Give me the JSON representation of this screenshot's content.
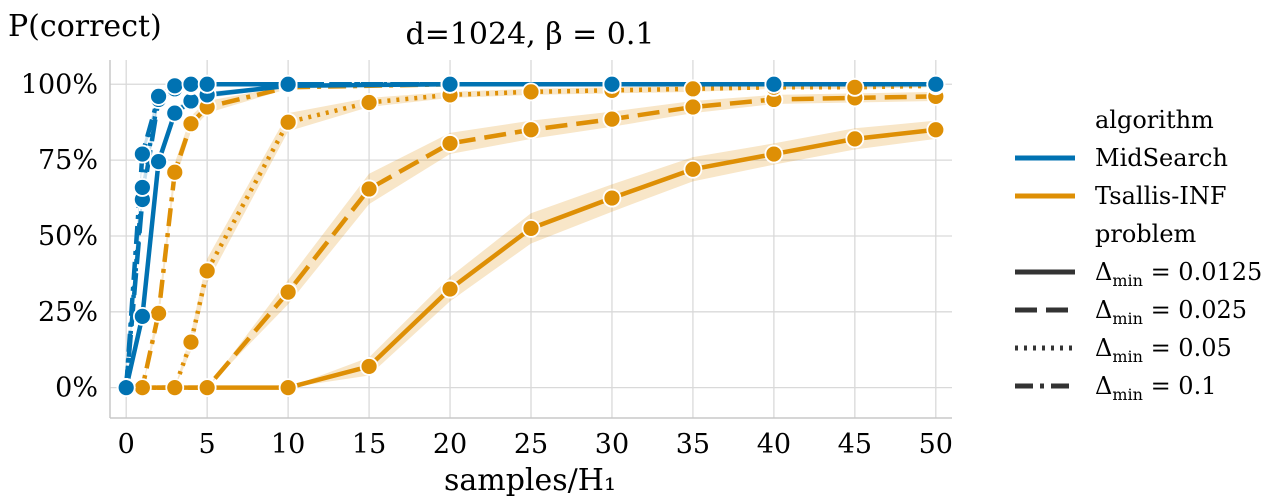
{
  "chart_data": {
    "type": "line",
    "title": "d=1024, β = 0.1",
    "xlabel": "samples/H₁",
    "ylabel": "P(correct)",
    "xlim": [
      -1,
      51
    ],
    "ylim": [
      -10,
      108
    ],
    "xticks": [
      0,
      5,
      10,
      15,
      20,
      25,
      30,
      35,
      40,
      45,
      50
    ],
    "yticks": [
      0,
      25,
      50,
      75,
      100
    ],
    "ytick_labels": [
      "0%",
      "25%",
      "50%",
      "75%",
      "100%"
    ],
    "grid": true,
    "legend": {
      "placement": "right",
      "hue_title": "algorithm",
      "algorithms": [
        {
          "name": "MidSearch",
          "color": "#0072b2"
        },
        {
          "name": "Tsallis-INF",
          "color": "#de8f05"
        }
      ],
      "style_title": "problem",
      "problems": [
        {
          "base": "Δ",
          "sub": "min",
          "rest": " = 0.0125",
          "dash": "solid"
        },
        {
          "base": "Δ",
          "sub": "min",
          "rest": " = 0.025",
          "dash": "dashed"
        },
        {
          "base": "Δ",
          "sub": "min",
          "rest": " = 0.05",
          "dash": "dotted"
        },
        {
          "base": "Δ",
          "sub": "min",
          "rest": " = 0.1",
          "dash": "dashdot"
        }
      ]
    },
    "series": [
      {
        "algorithm": "Tsallis-INF",
        "problem": "Δmin = 0.0125",
        "dash": "solid",
        "x": [
          0,
          10,
          15,
          20,
          25,
          30,
          35,
          40,
          45,
          50
        ],
        "y": [
          0,
          0,
          7,
          32.5,
          52.5,
          62.5,
          72,
          77,
          82,
          85
        ],
        "band": [
          0,
          0,
          3,
          4,
          5,
          4.5,
          4,
          3.5,
          3.5,
          3
        ]
      },
      {
        "algorithm": "Tsallis-INF",
        "problem": "Δmin = 0.025",
        "dash": "dashed",
        "x": [
          0,
          5,
          10,
          15,
          20,
          25,
          30,
          35,
          40,
          45,
          50
        ],
        "y": [
          0,
          0,
          31.5,
          65.5,
          80.5,
          85,
          88.5,
          92.5,
          95,
          95.5,
          96
        ],
        "band": [
          0,
          0,
          4,
          5,
          3.5,
          3,
          2.5,
          2,
          1.5,
          1.5,
          1.5
        ]
      },
      {
        "algorithm": "Tsallis-INF",
        "problem": "Δmin = 0.05",
        "dash": "dotted",
        "x": [
          0,
          3,
          4,
          5,
          10,
          15,
          20,
          25,
          30,
          35,
          40,
          45,
          50
        ],
        "y": [
          0,
          0,
          15,
          38.5,
          87.5,
          94,
          96.5,
          97.5,
          98,
          98.5,
          99,
          99,
          99.5
        ],
        "band": [
          0,
          0,
          3,
          4,
          3,
          1.5,
          1,
          1,
          1,
          1,
          0.5,
          0.5,
          0.5
        ]
      },
      {
        "algorithm": "Tsallis-INF",
        "problem": "Δmin = 0.1",
        "dash": "dashdot",
        "x": [
          0,
          1,
          2,
          3,
          4,
          5,
          10,
          20,
          30,
          40,
          50
        ],
        "y": [
          0,
          0,
          24.5,
          71,
          87,
          92.5,
          99,
          100,
          100,
          100,
          100
        ],
        "band": [
          0,
          0,
          3,
          3,
          2.5,
          2,
          0.5,
          0,
          0,
          0,
          0
        ]
      },
      {
        "algorithm": "MidSearch",
        "problem": "Δmin = 0.0125",
        "dash": "solid",
        "x": [
          0,
          1,
          2,
          3,
          4,
          5,
          10,
          20,
          30,
          40,
          50
        ],
        "y": [
          0,
          23.5,
          74.5,
          90.5,
          94.5,
          96.5,
          99.5,
          100,
          100,
          100,
          100
        ],
        "band": [
          0,
          2,
          2,
          1.5,
          1,
          1,
          0.5,
          0,
          0,
          0,
          0
        ]
      },
      {
        "algorithm": "MidSearch",
        "problem": "Δmin = 0.025",
        "dash": "dashed",
        "x": [
          0,
          1,
          2,
          3,
          4,
          5,
          10,
          20,
          30,
          40,
          50
        ],
        "y": [
          0,
          62,
          95,
          98.5,
          99.5,
          100,
          100,
          100,
          100,
          100,
          100
        ],
        "band": [
          0,
          2,
          1,
          0.5,
          0,
          0,
          0,
          0,
          0,
          0,
          0
        ]
      },
      {
        "algorithm": "MidSearch",
        "problem": "Δmin = 0.05",
        "dash": "dotted",
        "x": [
          0,
          1,
          2,
          3,
          4,
          5,
          10,
          20,
          30,
          40,
          50
        ],
        "y": [
          0,
          66,
          96,
          99.5,
          100,
          100,
          100,
          100,
          100,
          100,
          100
        ],
        "band": [
          0,
          2,
          1,
          0,
          0,
          0,
          0,
          0,
          0,
          0,
          0
        ]
      },
      {
        "algorithm": "MidSearch",
        "problem": "Δmin = 0.1",
        "dash": "dashdot",
        "x": [
          0,
          1,
          2,
          3,
          4,
          5,
          10,
          20,
          30,
          40,
          50
        ],
        "y": [
          0,
          77,
          96,
          99.5,
          100,
          100,
          100,
          100,
          100,
          100,
          100
        ],
        "band": [
          0,
          2,
          1,
          0,
          0,
          0,
          0,
          0,
          0,
          0,
          0
        ]
      }
    ]
  }
}
